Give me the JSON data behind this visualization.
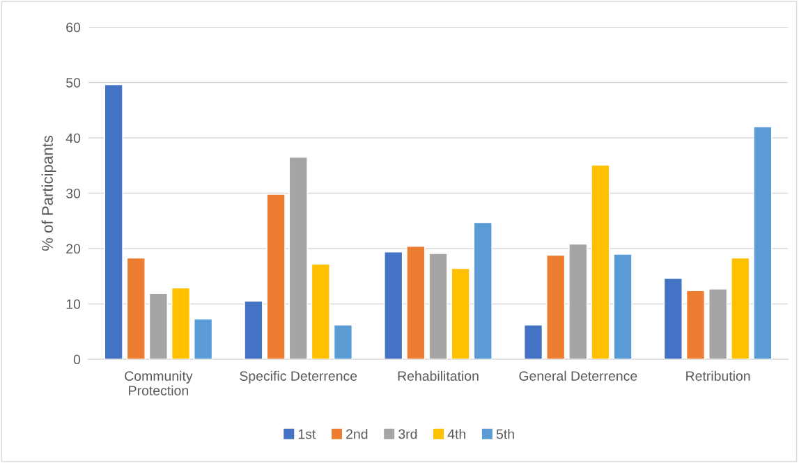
{
  "chart_data": {
    "type": "bar",
    "ylabel": "% of Participants",
    "categories": [
      "Community\nProtection",
      "Specific Deterrence",
      "Rehabilitation",
      "General Deterrence",
      "Retribution"
    ],
    "series": [
      {
        "name": "1st",
        "color": "#4472c4",
        "values": [
          49.6,
          10.5,
          19.4,
          6.2,
          14.6
        ]
      },
      {
        "name": "2nd",
        "color": "#ed7d31",
        "values": [
          18.3,
          29.8,
          20.4,
          18.8,
          12.4
        ]
      },
      {
        "name": "3rd",
        "color": "#a5a5a5",
        "values": [
          11.9,
          36.5,
          19.1,
          20.8,
          12.7
        ]
      },
      {
        "name": "4th",
        "color": "#ffc000",
        "values": [
          12.9,
          17.2,
          16.4,
          35.1,
          18.3
        ]
      },
      {
        "name": "5th",
        "color": "#5b9bd5",
        "values": [
          7.3,
          6.2,
          24.7,
          19.0,
          42.0
        ]
      }
    ],
    "ylim": [
      0,
      60
    ],
    "yticks": [
      0,
      10,
      20,
      30,
      40,
      50,
      60
    ],
    "grid": "y",
    "legend": "bottom"
  }
}
